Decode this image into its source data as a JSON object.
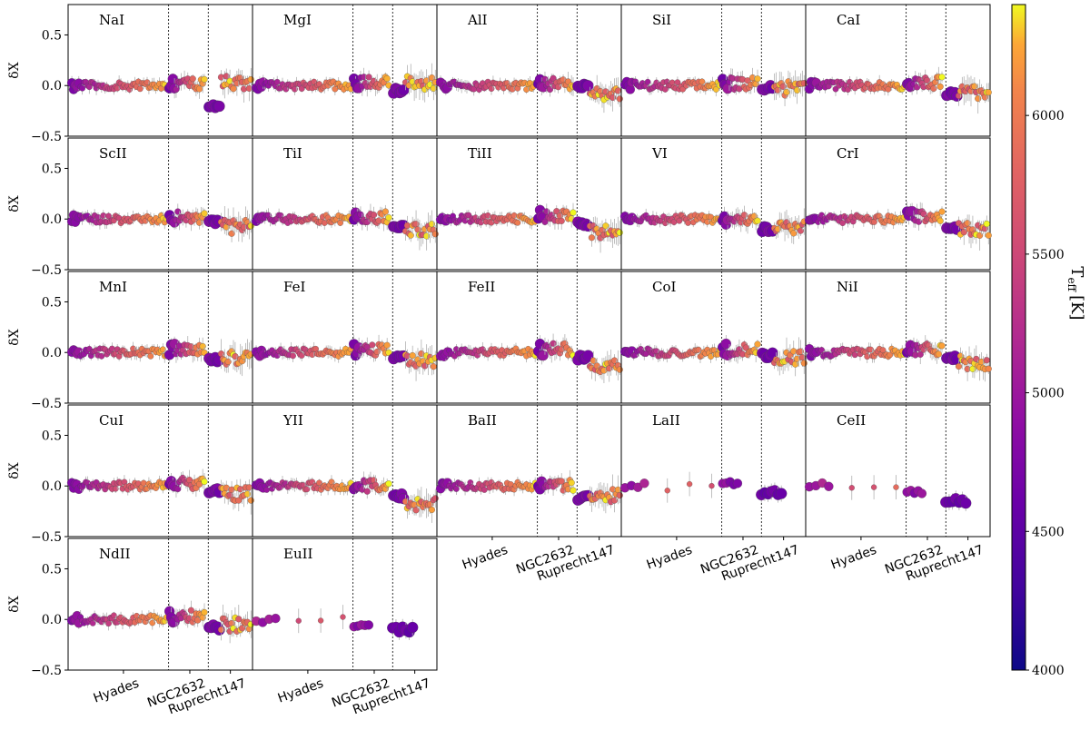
{
  "chart_data": {
    "type": "scatter",
    "ylabel": "δX",
    "ylim": [
      -0.5,
      0.8
    ],
    "yticks": [
      -0.5,
      0.0,
      0.5
    ],
    "ytick_labels": [
      "−0.5",
      "0.0",
      "0.5"
    ],
    "clusters": [
      "Hyades",
      "NGC2632",
      "Ruprecht147"
    ],
    "colorbar": {
      "label": "T_eff [K]",
      "label_main": "T",
      "label_sub": "eff",
      "label_unit": "[K]",
      "range": [
        4000,
        6400
      ],
      "ticks": [
        "4000",
        "4500",
        "5000",
        "5500",
        "6000"
      ],
      "cmap": "plasma"
    },
    "panels": [
      {
        "element": "NaI",
        "hyades": 0.0,
        "praesepe": 0.02,
        "ruprecht": -0.2,
        "ruprecht_hot": 0.03
      },
      {
        "element": "MgI",
        "hyades": 0.0,
        "praesepe": 0.03,
        "ruprecht": -0.05,
        "ruprecht_hot": 0.03
      },
      {
        "element": "AlI",
        "hyades": 0.0,
        "praesepe": 0.02,
        "ruprecht": 0.0,
        "ruprecht_hot": -0.07
      },
      {
        "element": "SiI",
        "hyades": 0.0,
        "praesepe": 0.02,
        "ruprecht": -0.02,
        "ruprecht_hot": -0.03
      },
      {
        "element": "CaI",
        "hyades": 0.0,
        "praesepe": 0.03,
        "ruprecht": -0.08,
        "ruprecht_hot": -0.07
      },
      {
        "element": "ScII",
        "hyades": 0.0,
        "praesepe": 0.02,
        "ruprecht": -0.03,
        "ruprecht_hot": -0.08
      },
      {
        "element": "TiI",
        "hyades": 0.0,
        "praesepe": 0.02,
        "ruprecht": -0.08,
        "ruprecht_hot": -0.1
      },
      {
        "element": "TiII",
        "hyades": 0.0,
        "praesepe": 0.03,
        "ruprecht": -0.05,
        "ruprecht_hot": -0.12
      },
      {
        "element": "VI",
        "hyades": 0.0,
        "praesepe": 0.0,
        "ruprecht": -0.1,
        "ruprecht_hot": -0.08
      },
      {
        "element": "CrI",
        "hyades": 0.0,
        "praesepe": 0.03,
        "ruprecht": -0.08,
        "ruprecht_hot": -0.1
      },
      {
        "element": "MnI",
        "hyades": 0.0,
        "praesepe": 0.03,
        "ruprecht": -0.07,
        "ruprecht_hot": -0.05
      },
      {
        "element": "FeI",
        "hyades": 0.0,
        "praesepe": 0.03,
        "ruprecht": -0.05,
        "ruprecht_hot": -0.08
      },
      {
        "element": "FeII",
        "hyades": 0.0,
        "praesepe": 0.03,
        "ruprecht": -0.05,
        "ruprecht_hot": -0.12
      },
      {
        "element": "CoI",
        "hyades": 0.0,
        "praesepe": 0.03,
        "ruprecht": -0.03,
        "ruprecht_hot": -0.05
      },
      {
        "element": "NiI",
        "hyades": 0.0,
        "praesepe": 0.03,
        "ruprecht": -0.05,
        "ruprecht_hot": -0.1
      },
      {
        "element": "CuI",
        "hyades": 0.0,
        "praesepe": 0.02,
        "ruprecht": -0.05,
        "ruprecht_hot": -0.08
      },
      {
        "element": "YII",
        "hyades": 0.0,
        "praesepe": 0.0,
        "ruprecht": -0.1,
        "ruprecht_hot": -0.18
      },
      {
        "element": "BaII",
        "hyades": 0.0,
        "praesepe": 0.0,
        "ruprecht": -0.12,
        "ruprecht_hot": -0.1
      },
      {
        "element": "LaII",
        "hyades": 0.0,
        "praesepe": 0.02,
        "ruprecht": -0.07,
        "ruprecht_hot": null,
        "sparse": true
      },
      {
        "element": "CeII",
        "hyades": 0.02,
        "praesepe": -0.05,
        "ruprecht": -0.15,
        "ruprecht_hot": null,
        "sparse": true
      },
      {
        "element": "NdII",
        "hyades": 0.0,
        "praesepe": 0.03,
        "ruprecht": -0.08,
        "ruprecht_hot": -0.05
      },
      {
        "element": "EuII",
        "hyades": 0.0,
        "praesepe": -0.05,
        "ruprecht": -0.1,
        "ruprecht_hot": null,
        "sparse": true
      }
    ]
  }
}
